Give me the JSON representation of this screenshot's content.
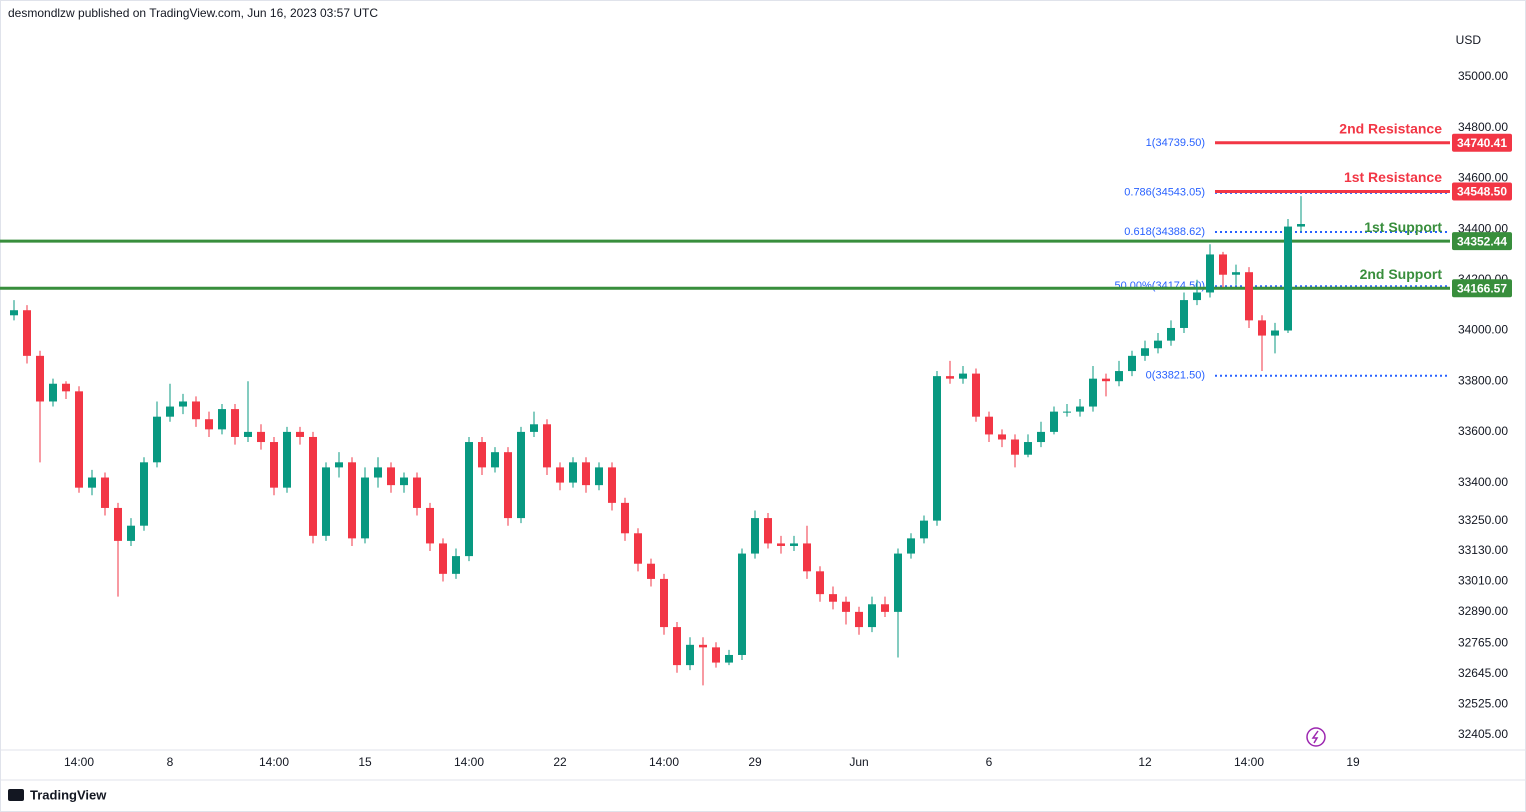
{
  "header": {
    "text": "desmondlzw published on TradingView.com, Jun 16, 2023 03:57 UTC"
  },
  "footer": {
    "brand": "TradingView"
  },
  "chart_data": {
    "type": "candlestick",
    "currency": "USD",
    "up_color": "#089981",
    "down_color": "#f23645",
    "categories": [
      null,
      null,
      null,
      null,
      null,
      "14:00",
      null,
      null,
      null,
      null,
      null,
      null,
      "8",
      null,
      null,
      null,
      null,
      null,
      null,
      null,
      "14:00",
      null,
      null,
      null,
      null,
      null,
      null,
      "15",
      null,
      null,
      null,
      null,
      null,
      null,
      null,
      "14:00",
      null,
      null,
      null,
      null,
      null,
      null,
      "22",
      null,
      null,
      null,
      null,
      null,
      null,
      null,
      "14:00",
      null,
      null,
      null,
      null,
      null,
      null,
      "29",
      null,
      null,
      null,
      null,
      null,
      null,
      null,
      "Jun",
      null,
      null,
      null,
      null,
      null,
      null,
      null,
      null,
      null,
      "6",
      null,
      null,
      null,
      null,
      null,
      null,
      null,
      null,
      null,
      null,
      null,
      "12",
      null,
      null,
      null,
      null,
      null,
      null,
      null,
      "14:00",
      null,
      null,
      null,
      null,
      null,
      null,
      null,
      "19"
    ],
    "open": [
      34060,
      34080,
      33900,
      33720,
      33790,
      33760,
      33380,
      33420,
      33300,
      33170,
      33230,
      33480,
      33660,
      33700,
      33720,
      33650,
      33610,
      33690,
      33580,
      33600,
      33560,
      33380,
      33600,
      33580,
      33190,
      33460,
      33480,
      33180,
      33420,
      33460,
      33390,
      33420,
      33300,
      33160,
      33040,
      33110,
      33560,
      33460,
      33520,
      33260,
      33600,
      33630,
      33460,
      33400,
      33480,
      33390,
      33460,
      33320,
      33200,
      33080,
      33020,
      32830,
      32680,
      32760,
      32750,
      32690,
      32720,
      33120,
      33260,
      33160,
      33150,
      33160,
      33050,
      32960,
      32930,
      32890,
      32830,
      32920,
      32890,
      33120,
      33180,
      33250,
      33820,
      33810,
      33830,
      33660,
      33590,
      33570,
      33510,
      33560,
      33600,
      33680,
      33680,
      33700,
      33810,
      33800,
      33840,
      33900,
      33930,
      33960,
      34010,
      34120,
      34150,
      34300,
      34220,
      34230,
      34040,
      33980,
      34000,
      34410,
      null,
      null,
      null,
      null
    ],
    "high": [
      34120,
      34100,
      33920,
      33810,
      33800,
      33780,
      33450,
      33440,
      33320,
      33260,
      33500,
      33720,
      33790,
      33750,
      33740,
      33680,
      33710,
      33710,
      33800,
      33630,
      33580,
      33620,
      33620,
      33600,
      33480,
      33520,
      33500,
      33460,
      33500,
      33480,
      33440,
      33440,
      33320,
      33180,
      33140,
      33580,
      33580,
      33540,
      33540,
      33620,
      33680,
      33650,
      33480,
      33500,
      33500,
      33480,
      33480,
      33340,
      33220,
      33100,
      33040,
      32850,
      32790,
      32790,
      32770,
      32740,
      33140,
      33290,
      33280,
      33190,
      33190,
      33230,
      33070,
      32990,
      32950,
      32910,
      32950,
      32950,
      33140,
      33200,
      33270,
      33840,
      33880,
      33860,
      33850,
      33680,
      33610,
      33590,
      33590,
      33640,
      33700,
      33710,
      33730,
      33860,
      33830,
      33880,
      33920,
      33960,
      33990,
      34040,
      34150,
      34200,
      34340,
      34310,
      34260,
      34250,
      34060,
      34030,
      34440,
      34530,
      null,
      null,
      null,
      null
    ],
    "low": [
      34040,
      33870,
      33480,
      33700,
      33730,
      33360,
      33350,
      33270,
      32950,
      33150,
      33210,
      33460,
      33640,
      33670,
      33620,
      33580,
      33590,
      33550,
      33560,
      33530,
      33350,
      33360,
      33550,
      33160,
      33170,
      33420,
      33150,
      33160,
      33380,
      33360,
      33360,
      33270,
      33130,
      33010,
      33020,
      33090,
      33430,
      33440,
      33230,
      33240,
      33580,
      33430,
      33370,
      33380,
      33360,
      33370,
      33290,
      33170,
      33050,
      32990,
      32800,
      32650,
      32660,
      32600,
      32670,
      32680,
      32700,
      33100,
      33140,
      33120,
      33130,
      33020,
      32930,
      32900,
      32840,
      32800,
      32810,
      32870,
      32710,
      33100,
      33160,
      33230,
      33790,
      33790,
      33640,
      33560,
      33540,
      33460,
      33500,
      33540,
      33590,
      33660,
      33660,
      33680,
      33740,
      33780,
      33820,
      33880,
      33910,
      33940,
      33990,
      34100,
      34130,
      34170,
      34180,
      34010,
      33840,
      33910,
      33990,
      34390,
      null,
      null,
      null,
      null
    ],
    "close": [
      34080,
      33900,
      33720,
      33790,
      33760,
      33380,
      33420,
      33300,
      33170,
      33230,
      33480,
      33660,
      33700,
      33720,
      33650,
      33610,
      33690,
      33580,
      33600,
      33560,
      33380,
      33600,
      33580,
      33190,
      33460,
      33480,
      33180,
      33420,
      33460,
      33390,
      33420,
      33300,
      33160,
      33040,
      33110,
      33560,
      33460,
      33520,
      33260,
      33600,
      33630,
      33460,
      33400,
      33480,
      33390,
      33460,
      33320,
      33200,
      33080,
      33020,
      32830,
      32680,
      32760,
      32750,
      32690,
      32720,
      33120,
      33260,
      33160,
      33150,
      33160,
      33050,
      32960,
      32930,
      32890,
      32830,
      32920,
      32890,
      33120,
      33180,
      33250,
      33820,
      33810,
      33830,
      33660,
      33590,
      33570,
      33510,
      33560,
      33600,
      33680,
      33680,
      33700,
      33810,
      33800,
      33840,
      33900,
      33930,
      33960,
      34010,
      34120,
      34150,
      34300,
      34220,
      34230,
      34040,
      33980,
      34000,
      34410,
      34420,
      null,
      null,
      null,
      null
    ],
    "ylim": [
      32353,
      35217
    ],
    "yticks": [
      {
        "value": 35000,
        "label": "35000.00"
      },
      {
        "value": 34800,
        "label": "34800.00"
      },
      {
        "value": 34600,
        "label": "34600.00"
      },
      {
        "value": 34400,
        "label": "34400.00"
      },
      {
        "value": 34200,
        "label": "34200.00"
      },
      {
        "value": 34000,
        "label": "34000.00"
      },
      {
        "value": 33800,
        "label": "33800.00"
      },
      {
        "value": 33600,
        "label": "33600.00"
      },
      {
        "value": 33400,
        "label": "33400.00"
      },
      {
        "value": 33250,
        "label": "33250.00"
      },
      {
        "value": 33130,
        "label": "33130.00"
      },
      {
        "value": 33010,
        "label": "33010.00"
      },
      {
        "value": 32890,
        "label": "32890.00"
      },
      {
        "value": 32765,
        "label": "32765.00"
      },
      {
        "value": 32645,
        "label": "32645.00"
      },
      {
        "value": 32525,
        "label": "32525.00"
      },
      {
        "value": 32405,
        "label": "32405.00"
      }
    ],
    "levels": [
      {
        "name": "2nd Resistance",
        "value": 34740.41,
        "label": "34740.41",
        "color": "#f23645"
      },
      {
        "name": "1st Resistance",
        "value": 34548.5,
        "label": "34548.50",
        "color": "#f23645"
      },
      {
        "name": "1st Support",
        "value": 34352.44,
        "label": "34352.44",
        "color": "#388e3c"
      },
      {
        "name": "2nd Support",
        "value": 34166.57,
        "label": "34166.57",
        "color": "#388e3c"
      }
    ],
    "fib_levels": [
      {
        "label": "1(34739.50)",
        "value": 34739.5
      },
      {
        "label": "0.786(34543.05)",
        "value": 34543.05
      },
      {
        "label": "0.618(34388.62)",
        "value": 34388.62
      },
      {
        "label": "50.00%(34174.50)",
        "value": 34174.5
      },
      {
        "label": "0(33821.50)",
        "value": 33821.5
      }
    ]
  }
}
